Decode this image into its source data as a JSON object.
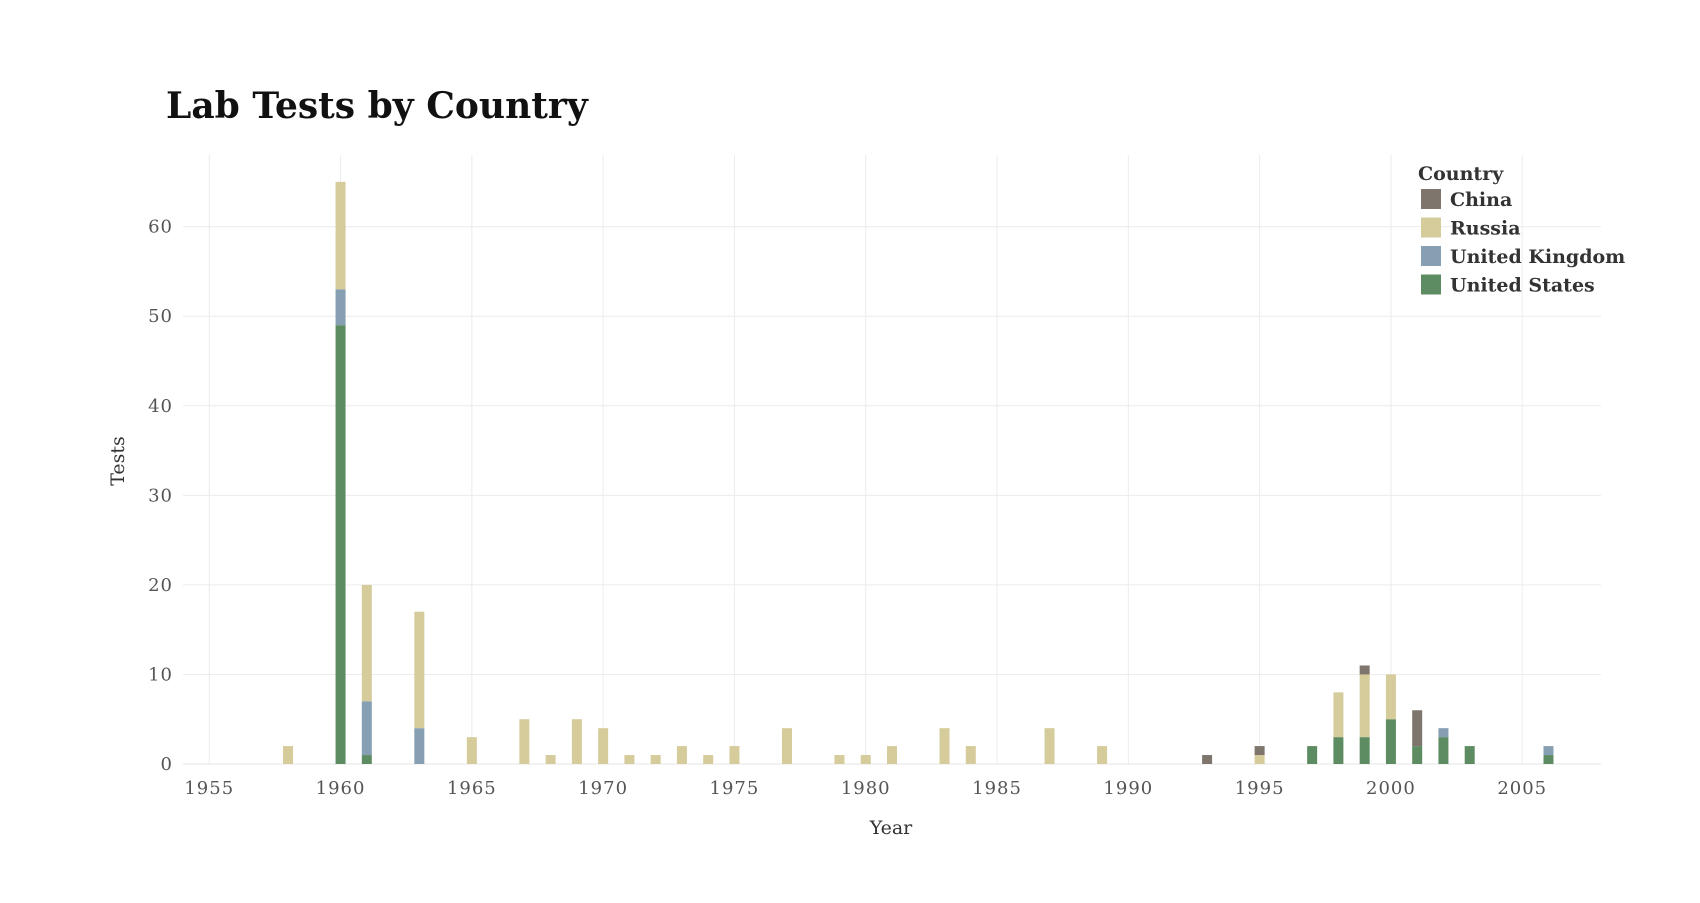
{
  "chart_data": {
    "type": "bar",
    "stacked": true,
    "title": "Lab Tests by Country",
    "xlabel": "Year",
    "ylabel": "Tests",
    "xlim": [
      1954,
      2008
    ],
    "ylim": [
      0,
      68
    ],
    "xticks": [
      1955,
      1960,
      1965,
      1970,
      1975,
      1980,
      1985,
      1990,
      1995,
      2000,
      2005
    ],
    "yticks": [
      0,
      10,
      20,
      30,
      40,
      50,
      60
    ],
    "grid": true,
    "legend": {
      "title": "Country",
      "position": "top-right"
    },
    "series": [
      {
        "name": "United States",
        "color": "#5e8c62",
        "points": [
          [
            1960,
            49
          ],
          [
            1961,
            1
          ],
          [
            1997,
            2
          ],
          [
            1998,
            3
          ],
          [
            1999,
            3
          ],
          [
            2000,
            5
          ],
          [
            2001,
            2
          ],
          [
            2002,
            3
          ],
          [
            2003,
            2
          ],
          [
            2006,
            1
          ]
        ]
      },
      {
        "name": "United Kingdom",
        "color": "#869fb2",
        "points": [
          [
            1960,
            4
          ],
          [
            1961,
            6
          ],
          [
            1963,
            4
          ],
          [
            2002,
            1
          ],
          [
            2006,
            1
          ]
        ]
      },
      {
        "name": "Russia",
        "color": "#d6cb9b",
        "points": [
          [
            1958,
            2
          ],
          [
            1960,
            12
          ],
          [
            1961,
            13
          ],
          [
            1963,
            13
          ],
          [
            1965,
            3
          ],
          [
            1967,
            5
          ],
          [
            1968,
            1
          ],
          [
            1969,
            5
          ],
          [
            1970,
            4
          ],
          [
            1971,
            1
          ],
          [
            1972,
            1
          ],
          [
            1973,
            2
          ],
          [
            1974,
            1
          ],
          [
            1975,
            2
          ],
          [
            1977,
            4
          ],
          [
            1979,
            1
          ],
          [
            1980,
            1
          ],
          [
            1981,
            2
          ],
          [
            1983,
            4
          ],
          [
            1984,
            2
          ],
          [
            1987,
            4
          ],
          [
            1989,
            2
          ],
          [
            1995,
            1
          ],
          [
            1998,
            5
          ],
          [
            1999,
            7
          ],
          [
            2000,
            5
          ]
        ]
      },
      {
        "name": "China",
        "color": "#7e756c",
        "points": [
          [
            1993,
            1
          ],
          [
            1995,
            1
          ],
          [
            1999,
            1
          ],
          [
            2001,
            4
          ]
        ]
      }
    ]
  }
}
